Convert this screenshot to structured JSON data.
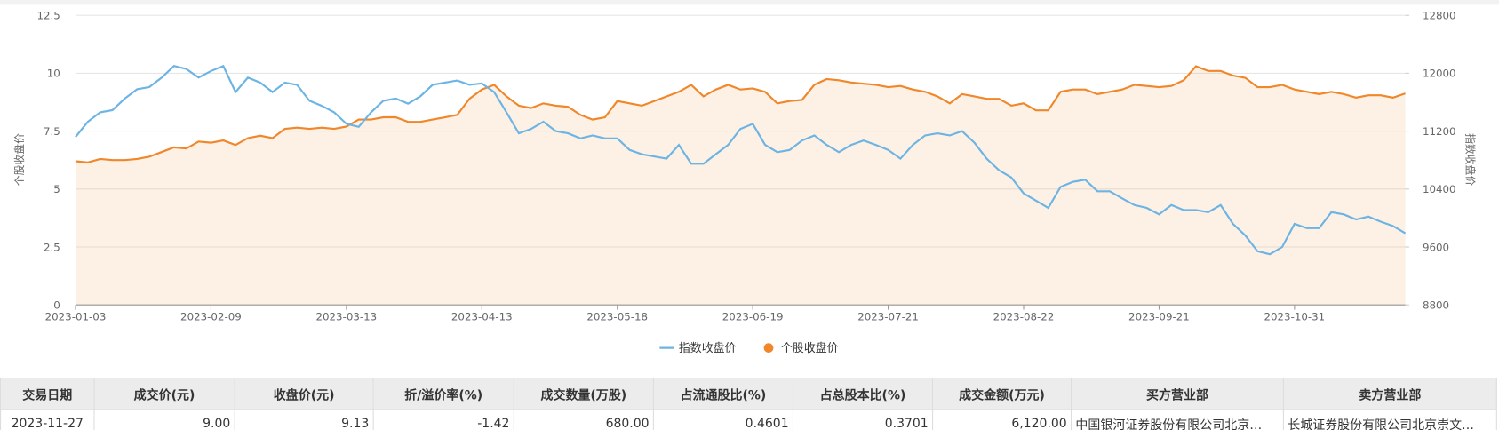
{
  "chart_data": {
    "type": "line",
    "categories": [
      "2023-01-03",
      null,
      null,
      null,
      null,
      null,
      null,
      null,
      null,
      null,
      null,
      "2023-02-09",
      null,
      null,
      null,
      null,
      null,
      null,
      null,
      null,
      null,
      null,
      "2023-03-13",
      null,
      null,
      null,
      null,
      null,
      null,
      null,
      null,
      null,
      null,
      "2023-04-13",
      null,
      null,
      null,
      null,
      null,
      null,
      null,
      null,
      null,
      null,
      "2023-05-18",
      null,
      null,
      null,
      null,
      null,
      null,
      null,
      null,
      null,
      null,
      "2023-06-19",
      null,
      null,
      null,
      null,
      null,
      null,
      null,
      null,
      null,
      null,
      "2023-07-21",
      null,
      null,
      null,
      null,
      null,
      null,
      null,
      null,
      null,
      null,
      "2023-08-22",
      null,
      null,
      null,
      null,
      null,
      null,
      null,
      null,
      null,
      null,
      "2023-09-21",
      null,
      null,
      null,
      null,
      null,
      null,
      null,
      null,
      null,
      null,
      "2023-10-31",
      null,
      null,
      null,
      null,
      null,
      null,
      null,
      null,
      null
    ],
    "series": [
      {
        "name": "指数收盘价",
        "color": "#6cb4e4",
        "axis": "y2",
        "values": [
          11120,
          11330,
          11460,
          11490,
          11650,
          11780,
          11810,
          11940,
          12100,
          12060,
          11940,
          12030,
          12100,
          11740,
          11940,
          11870,
          11740,
          11870,
          11840,
          11620,
          11550,
          11460,
          11300,
          11260,
          11460,
          11620,
          11650,
          11580,
          11680,
          11840,
          11870,
          11900,
          11840,
          11860,
          11740,
          11460,
          11170,
          11230,
          11330,
          11200,
          11170,
          11100,
          11140,
          11100,
          11100,
          10940,
          10880,
          10850,
          10820,
          11010,
          10750,
          10750,
          10880,
          11010,
          11230,
          11300,
          11010,
          10910,
          10940,
          11070,
          11140,
          11010,
          10910,
          11010,
          11070,
          11010,
          10940,
          10820,
          11010,
          11140,
          11170,
          11140,
          11200,
          11040,
          10820,
          10660,
          10560,
          10340,
          10240,
          10140,
          10430,
          10500,
          10530,
          10370,
          10370,
          10270,
          10180,
          10140,
          10050,
          10180,
          10110,
          10110,
          10080,
          10180,
          9920,
          9760,
          9540,
          9500,
          9600,
          9920,
          9860,
          9860,
          10080,
          10050,
          9980,
          10020,
          9950,
          9890,
          9790
        ]
      },
      {
        "name": "个股收盘价",
        "color": "#f0872a",
        "area": true,
        "values": [
          6.2,
          6.15,
          6.3,
          6.25,
          6.25,
          6.3,
          6.4,
          6.6,
          6.8,
          6.75,
          7.05,
          7.0,
          7.1,
          6.9,
          7.2,
          7.3,
          7.2,
          7.6,
          7.65,
          7.6,
          7.65,
          7.6,
          7.7,
          8.0,
          8.0,
          8.1,
          8.1,
          7.9,
          7.9,
          8.0,
          8.1,
          8.2,
          8.9,
          9.3,
          9.5,
          9.0,
          8.6,
          8.5,
          8.7,
          8.6,
          8.55,
          8.2,
          8.0,
          8.1,
          8.8,
          8.7,
          8.6,
          8.8,
          9.0,
          9.2,
          9.5,
          9.0,
          9.3,
          9.5,
          9.3,
          9.35,
          9.2,
          8.7,
          8.8,
          8.85,
          9.5,
          9.75,
          9.7,
          9.6,
          9.55,
          9.5,
          9.4,
          9.45,
          9.3,
          9.2,
          9.0,
          8.7,
          9.1,
          9.0,
          8.9,
          8.9,
          8.6,
          8.7,
          8.4,
          8.4,
          9.2,
          9.3,
          9.3,
          9.1,
          9.2,
          9.3,
          9.5,
          9.45,
          9.4,
          9.45,
          9.7,
          10.3,
          10.1,
          10.1,
          9.9,
          9.8,
          9.4,
          9.4,
          9.5,
          9.3,
          9.2,
          9.1,
          9.2,
          9.1,
          8.95,
          9.05,
          9.05,
          8.95,
          9.13
        ]
      }
    ],
    "ylabel": "个股收盘价",
    "y2label": "指数收盘价",
    "ylim": [
      0,
      12.5
    ],
    "yticks": [
      0,
      2.5,
      5,
      7.5,
      10,
      12.5
    ],
    "y2lim": [
      8800,
      12800
    ],
    "y2ticks": [
      8800,
      9600,
      10400,
      11200,
      12000,
      12800
    ],
    "grid": true,
    "legend": "bottom"
  },
  "table": {
    "headers": [
      "交易日期",
      "成交价(元)",
      "收盘价(元)",
      "折/溢价率(%)",
      "成交数量(万股)",
      "占流通股比(%)",
      "占总股本比(%)",
      "成交金额(万元)",
      "买方营业部",
      "卖方营业部"
    ],
    "rows": [
      [
        "2023-11-27",
        "9.00",
        "9.13",
        "-1.42",
        "680.00",
        "0.4601",
        "0.3701",
        "6,120.00",
        "中国银河证券股份有限公司北京…",
        "长城证券股份有限公司北京崇文…"
      ]
    ]
  }
}
